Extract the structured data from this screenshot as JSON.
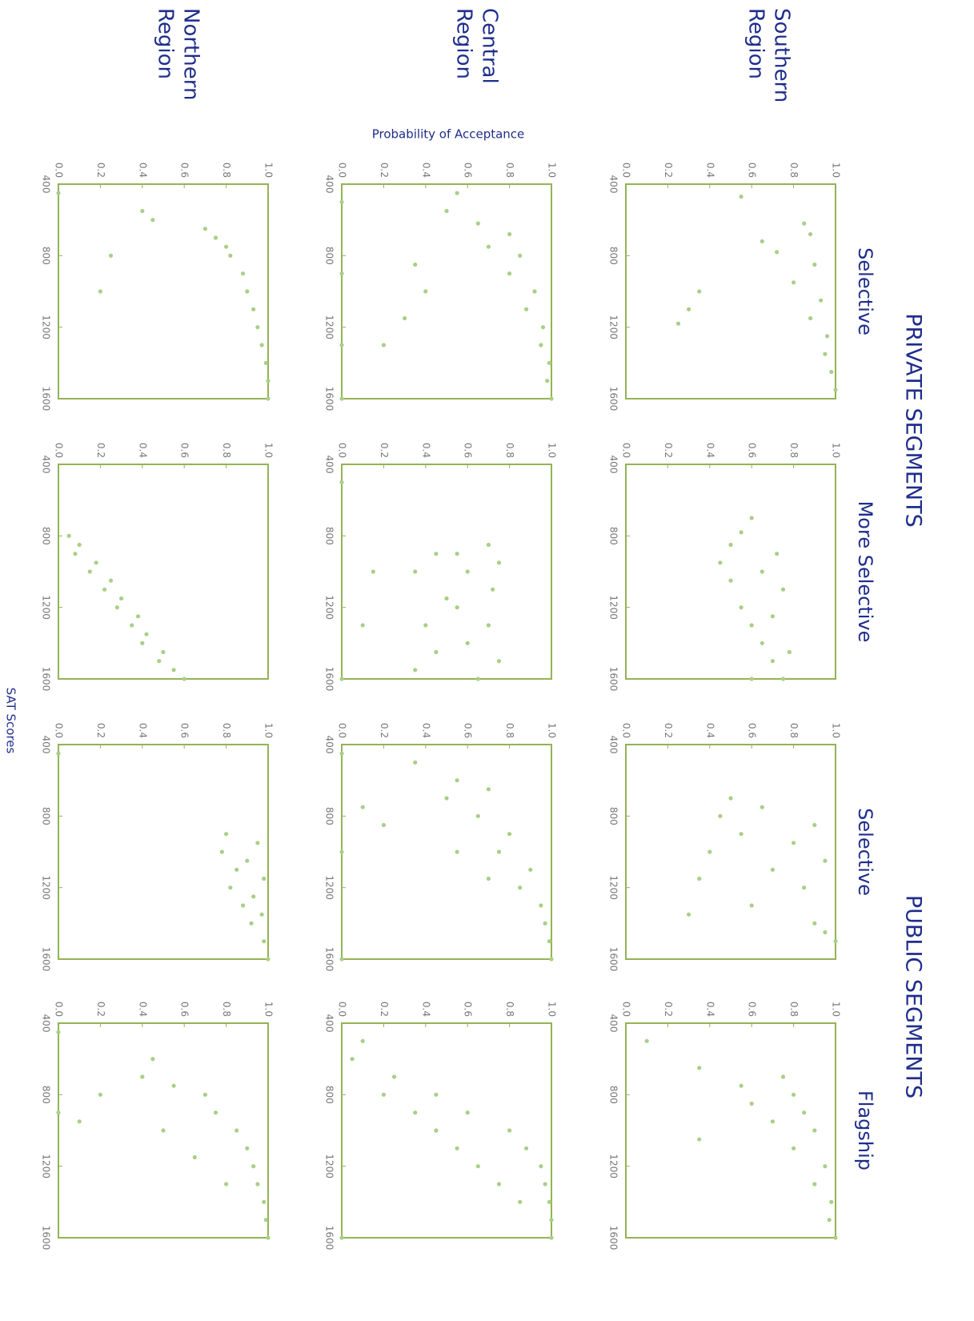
{
  "group_titles": [
    "PRIVATE SEGMENTS",
    "PUBLIC SEGMENTS"
  ],
  "column_titles": [
    "Selective",
    "More Selective",
    "Selective",
    "Flagship"
  ],
  "row_titles": [
    [
      "Southern",
      "Region"
    ],
    [
      "Central",
      "Region"
    ],
    [
      "Northern",
      "Region"
    ]
  ],
  "y_axis_label": "Probability of Acceptance",
  "x_axis_label": "SAT Scores",
  "chart_data": [
    {
      "type": "scatter",
      "color": "#a9cf86",
      "xlim": [
        400,
        1600
      ],
      "ylim": [
        0,
        1
      ],
      "xticks": [
        400,
        800,
        1200,
        1600
      ],
      "yticks": [
        {
          "value": 0,
          "label": "0.0"
        },
        {
          "value": 0.2,
          "label": "0.2"
        },
        {
          "value": 0.4,
          "label": "0.4"
        },
        {
          "value": 0.6,
          "label": "0.6"
        },
        {
          "value": 0.8,
          "label": "0.8"
        },
        {
          "value": 1,
          "label": "1.0"
        }
      ],
      "x": [
        470,
        620,
        680,
        720,
        780,
        850,
        950,
        1050,
        1150,
        1250,
        1350,
        1450,
        1550,
        1000,
        1100,
        1180
      ],
      "y": [
        0.55,
        0.85,
        0.88,
        0.65,
        0.72,
        0.9,
        0.8,
        0.93,
        0.88,
        0.96,
        0.95,
        0.98,
        1.0,
        0.35,
        0.3,
        0.25
      ]
    },
    {
      "type": "scatter",
      "color": "#a9cf86",
      "xlim": [
        400,
        1600
      ],
      "ylim": [
        0,
        1
      ],
      "xticks": [
        400,
        800,
        1200,
        1600
      ],
      "yticks": [
        {
          "value": 0,
          "label": "0.0"
        },
        {
          "value": 0.2,
          "label": "0.2"
        },
        {
          "value": 0.4,
          "label": "0.4"
        },
        {
          "value": 0.6,
          "label": "0.6"
        },
        {
          "value": 0.8,
          "label": "0.8"
        },
        {
          "value": 1,
          "label": "1.0"
        }
      ],
      "x": [
        700,
        780,
        850,
        900,
        950,
        1000,
        1050,
        1100,
        1200,
        1250,
        1300,
        1400,
        1450,
        1500,
        1600,
        1600
      ],
      "y": [
        0.6,
        0.55,
        0.5,
        0.72,
        0.45,
        0.65,
        0.5,
        0.75,
        0.55,
        0.7,
        0.6,
        0.65,
        0.78,
        0.7,
        0.75,
        0.6
      ]
    },
    {
      "type": "scatter",
      "color": "#a9cf86",
      "xlim": [
        400,
        1600
      ],
      "ylim": [
        0,
        1
      ],
      "xticks": [
        400,
        800,
        1200,
        1600
      ],
      "yticks": [
        {
          "value": 0,
          "label": "0.0"
        },
        {
          "value": 0.2,
          "label": "0.2"
        },
        {
          "value": 0.4,
          "label": "0.4"
        },
        {
          "value": 0.6,
          "label": "0.6"
        },
        {
          "value": 0.8,
          "label": "0.8"
        },
        {
          "value": 1,
          "label": "1.0"
        }
      ],
      "x": [
        700,
        750,
        800,
        850,
        900,
        950,
        1000,
        1050,
        1100,
        1150,
        1200,
        1300,
        1350,
        1400,
        1450,
        1500
      ],
      "y": [
        0.5,
        0.65,
        0.45,
        0.9,
        0.55,
        0.8,
        0.4,
        0.95,
        0.7,
        0.35,
        0.85,
        0.6,
        0.3,
        0.9,
        0.95,
        1.0
      ]
    },
    {
      "type": "scatter",
      "color": "#a9cf86",
      "xlim": [
        400,
        1600
      ],
      "ylim": [
        0,
        1
      ],
      "xticks": [
        400,
        800,
        1200,
        1600
      ],
      "yticks": [
        {
          "value": 0,
          "label": "0.0"
        },
        {
          "value": 0.2,
          "label": "0.2"
        },
        {
          "value": 0.4,
          "label": "0.4"
        },
        {
          "value": 0.6,
          "label": "0.6"
        },
        {
          "value": 0.8,
          "label": "0.8"
        },
        {
          "value": 1,
          "label": "1.0"
        }
      ],
      "x": [
        500,
        650,
        700,
        750,
        800,
        850,
        900,
        950,
        1000,
        1050,
        1100,
        1200,
        1300,
        1400,
        1500,
        1600
      ],
      "y": [
        0.1,
        0.35,
        0.75,
        0.55,
        0.8,
        0.6,
        0.85,
        0.7,
        0.9,
        0.35,
        0.8,
        0.95,
        0.9,
        0.98,
        0.97,
        1.0
      ]
    },
    {
      "type": "scatter",
      "color": "#a9cf86",
      "xlim": [
        400,
        1600
      ],
      "ylim": [
        0,
        1
      ],
      "xticks": [
        400,
        800,
        1200,
        1600
      ],
      "yticks": [
        {
          "value": 0,
          "label": "0.0"
        },
        {
          "value": 0.2,
          "label": "0.2"
        },
        {
          "value": 0.4,
          "label": "0.4"
        },
        {
          "value": 0.6,
          "label": "0.6"
        },
        {
          "value": 0.8,
          "label": "0.8"
        },
        {
          "value": 1,
          "label": "1.0"
        }
      ],
      "x": [
        450,
        550,
        620,
        680,
        750,
        800,
        900,
        1000,
        1100,
        1200,
        1300,
        1400,
        1500,
        1600,
        850,
        1000,
        1150,
        1300,
        500,
        900,
        1300,
        1600
      ],
      "y": [
        0.55,
        0.5,
        0.65,
        0.8,
        0.7,
        0.85,
        0.8,
        0.92,
        0.88,
        0.96,
        0.95,
        0.99,
        0.98,
        1.0,
        0.35,
        0.4,
        0.3,
        0.2,
        0,
        0,
        0,
        0
      ]
    },
    {
      "type": "scatter",
      "color": "#a9cf86",
      "xlim": [
        400,
        1600
      ],
      "ylim": [
        0,
        1
      ],
      "xticks": [
        400,
        800,
        1200,
        1600
      ],
      "yticks": [
        {
          "value": 0,
          "label": "0.0"
        },
        {
          "value": 0.2,
          "label": "0.2"
        },
        {
          "value": 0.4,
          "label": "0.4"
        },
        {
          "value": 0.6,
          "label": "0.6"
        },
        {
          "value": 0.8,
          "label": "0.8"
        },
        {
          "value": 1,
          "label": "1.0"
        }
      ],
      "x": [
        850,
        900,
        950,
        1000,
        1100,
        1200,
        1300,
        1400,
        1500,
        1600,
        900,
        1000,
        1150,
        1300,
        1450,
        1550,
        1000,
        1300,
        500,
        1600
      ],
      "y": [
        0.7,
        0.55,
        0.75,
        0.6,
        0.72,
        0.55,
        0.7,
        0.6,
        0.75,
        0.65,
        0.45,
        0.35,
        0.5,
        0.4,
        0.45,
        0.35,
        0.15,
        0.1,
        0,
        0
      ]
    },
    {
      "type": "scatter",
      "color": "#a9cf86",
      "xlim": [
        400,
        1600
      ],
      "ylim": [
        0,
        1
      ],
      "xticks": [
        400,
        800,
        1200,
        1600
      ],
      "yticks": [
        {
          "value": 0,
          "label": "0.0"
        },
        {
          "value": 0.2,
          "label": "0.2"
        },
        {
          "value": 0.4,
          "label": "0.4"
        },
        {
          "value": 0.6,
          "label": "0.6"
        },
        {
          "value": 0.8,
          "label": "0.8"
        },
        {
          "value": 1,
          "label": "1.0"
        }
      ],
      "x": [
        500,
        600,
        650,
        700,
        800,
        900,
        1000,
        1100,
        1200,
        1300,
        1400,
        1500,
        1600,
        750,
        850,
        1000,
        1150,
        450,
        1000,
        1600
      ],
      "y": [
        0.35,
        0.55,
        0.7,
        0.5,
        0.65,
        0.8,
        0.75,
        0.9,
        0.85,
        0.95,
        0.97,
        0.99,
        1.0,
        0.1,
        0.2,
        0.55,
        0.7,
        0,
        0,
        0
      ]
    },
    {
      "type": "scatter",
      "color": "#a9cf86",
      "xlim": [
        400,
        1600
      ],
      "ylim": [
        0,
        1
      ],
      "xticks": [
        400,
        800,
        1200,
        1600
      ],
      "yticks": [
        {
          "value": 0,
          "label": "0.0"
        },
        {
          "value": 0.2,
          "label": "0.2"
        },
        {
          "value": 0.4,
          "label": "0.4"
        },
        {
          "value": 0.6,
          "label": "0.6"
        },
        {
          "value": 0.8,
          "label": "0.8"
        },
        {
          "value": 1,
          "label": "1.0"
        }
      ],
      "x": [
        500,
        600,
        700,
        800,
        900,
        1000,
        1100,
        1200,
        1300,
        1400,
        1500,
        1600,
        900,
        1000,
        1100,
        1200,
        1300,
        1400,
        800,
        1600
      ],
      "y": [
        0.1,
        0.05,
        0.25,
        0.45,
        0.6,
        0.8,
        0.88,
        0.95,
        0.97,
        0.99,
        1.0,
        1.0,
        0.35,
        0.45,
        0.55,
        0.65,
        0.75,
        0.85,
        0.2,
        0
      ]
    },
    {
      "type": "scatter",
      "color": "#a9cf86",
      "xlim": [
        400,
        1600
      ],
      "ylim": [
        0,
        1
      ],
      "xticks": [
        400,
        800,
        1200,
        1600
      ],
      "yticks": [
        {
          "value": 0,
          "label": "0.0"
        },
        {
          "value": 0.2,
          "label": "0.2"
        },
        {
          "value": 0.4,
          "label": "0.4"
        },
        {
          "value": 0.6,
          "label": "0.6"
        },
        {
          "value": 0.8,
          "label": "0.8"
        },
        {
          "value": 1,
          "label": "1.0"
        }
      ],
      "x": [
        550,
        600,
        650,
        700,
        750,
        800,
        900,
        1000,
        1100,
        1200,
        1300,
        1400,
        1500,
        1600,
        800,
        1000,
        450
      ],
      "y": [
        0.4,
        0.45,
        0.7,
        0.75,
        0.8,
        0.82,
        0.88,
        0.9,
        0.93,
        0.95,
        0.97,
        0.99,
        1.0,
        1.0,
        0.25,
        0.2,
        0
      ]
    },
    {
      "type": "scatter",
      "color": "#a9cf86",
      "xlim": [
        400,
        1600
      ],
      "ylim": [
        0,
        1
      ],
      "xticks": [
        400,
        800,
        1200,
        1600
      ],
      "yticks": [
        {
          "value": 0,
          "label": "0.0"
        },
        {
          "value": 0.2,
          "label": "0.2"
        },
        {
          "value": 0.4,
          "label": "0.4"
        },
        {
          "value": 0.6,
          "label": "0.6"
        },
        {
          "value": 0.8,
          "label": "0.8"
        },
        {
          "value": 1,
          "label": "1.0"
        }
      ],
      "x": [
        800,
        850,
        900,
        950,
        1000,
        1050,
        1100,
        1150,
        1200,
        1250,
        1300,
        1350,
        1400,
        1450,
        1500,
        1550,
        1600
      ],
      "y": [
        0.05,
        0.1,
        0.08,
        0.18,
        0.15,
        0.25,
        0.22,
        0.3,
        0.28,
        0.38,
        0.35,
        0.42,
        0.4,
        0.5,
        0.48,
        0.55,
        0.6
      ]
    },
    {
      "type": "scatter",
      "color": "#a9cf86",
      "xlim": [
        400,
        1600
      ],
      "ylim": [
        0,
        1
      ],
      "xticks": [
        400,
        800,
        1200,
        1600
      ],
      "yticks": [
        {
          "value": 0,
          "label": "0.0"
        },
        {
          "value": 0.2,
          "label": "0.2"
        },
        {
          "value": 0.4,
          "label": "0.4"
        },
        {
          "value": 0.6,
          "label": "0.6"
        },
        {
          "value": 0.8,
          "label": "0.8"
        },
        {
          "value": 1,
          "label": "1.0"
        }
      ],
      "x": [
        900,
        950,
        1000,
        1050,
        1100,
        1150,
        1200,
        1250,
        1300,
        1350,
        1400,
        1500,
        1600,
        450
      ],
      "y": [
        0.8,
        0.95,
        0.78,
        0.9,
        0.85,
        0.98,
        0.82,
        0.93,
        0.88,
        0.97,
        0.92,
        0.98,
        1.0,
        0
      ]
    },
    {
      "type": "scatter",
      "color": "#a9cf86",
      "xlim": [
        400,
        1600
      ],
      "ylim": [
        0,
        1
      ],
      "xticks": [
        400,
        800,
        1200,
        1600
      ],
      "yticks": [
        {
          "value": 0,
          "label": "0.0"
        },
        {
          "value": 0.2,
          "label": "0.2"
        },
        {
          "value": 0.4,
          "label": "0.4"
        },
        {
          "value": 0.6,
          "label": "0.6"
        },
        {
          "value": 0.8,
          "label": "0.8"
        },
        {
          "value": 1,
          "label": "1.0"
        }
      ],
      "x": [
        600,
        700,
        750,
        800,
        900,
        1000,
        1100,
        1200,
        1300,
        1400,
        1500,
        1600,
        800,
        950,
        1000,
        1150,
        1300,
        450,
        900
      ],
      "y": [
        0.45,
        0.4,
        0.55,
        0.7,
        0.75,
        0.85,
        0.9,
        0.93,
        0.95,
        0.98,
        0.99,
        1.0,
        0.2,
        0.1,
        0.5,
        0.65,
        0.8,
        0,
        0
      ]
    }
  ]
}
